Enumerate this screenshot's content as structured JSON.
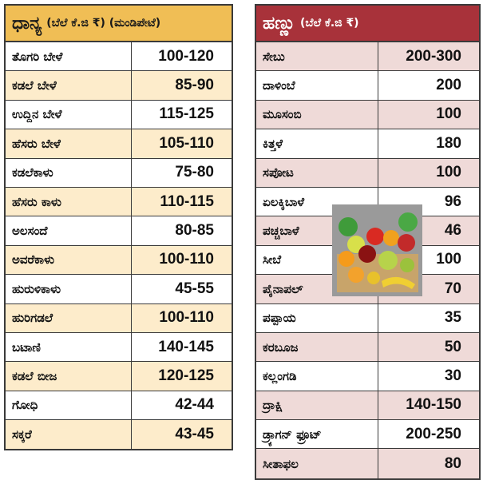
{
  "grains": {
    "title_main": "ಧಾನ್ಯ",
    "title_sub": "(ಬೆಲೆ ಕೆ.ಜಿ ₹) (ಮಂಡಿಪೇಟೆ)",
    "items": [
      {
        "name": "ತೊಗರಿ ಬೇಳೆ",
        "price": "100-120"
      },
      {
        "name": "ಕಡಲೆ ಬೇಳೆ",
        "price": "85-90"
      },
      {
        "name": "ಉದ್ದಿನ ಬೇಳೆ",
        "price": "115-125"
      },
      {
        "name": "ಹೆಸರು ಬೇಳೆ",
        "price": "105-110"
      },
      {
        "name": "ಕಡಲೆಕಾಳು",
        "price": "75-80"
      },
      {
        "name": "ಹೆಸರು ಕಾಳು",
        "price": "110-115"
      },
      {
        "name": "ಅಲಸಂದೆ",
        "price": "80-85"
      },
      {
        "name": "ಅವರೆಕಾಳು",
        "price": "100-110"
      },
      {
        "name": "ಹುರುಳಿಕಾಳು",
        "price": "45-55"
      },
      {
        "name": "ಹುರಿಗಡಲೆ",
        "price": "100-110"
      },
      {
        "name": "ಬಟಾಣಿ",
        "price": "140-145"
      },
      {
        "name": "ಕಡಲೆ ಬೀಜ",
        "price": "120-125"
      },
      {
        "name": "ಗೋಧಿ",
        "price": "42-44"
      },
      {
        "name": "ಸಕ್ಕರೆ",
        "price": "43-45"
      }
    ]
  },
  "fruits": {
    "title_main": "ಹಣ್ಣು",
    "title_sub": "(ಬೆಲೆ ಕೆ.ಜಿ ₹)",
    "items": [
      {
        "name": "ಸೇಬು",
        "price": "200-300"
      },
      {
        "name": "ದಾಳಿಂಬೆ",
        "price": "200"
      },
      {
        "name": "ಮೂಸಂಬಿ",
        "price": "100"
      },
      {
        "name": "ಕಿತ್ತಳೆ",
        "price": "180"
      },
      {
        "name": "ಸಪೋಟ",
        "price": "100"
      },
      {
        "name": "ಏಲಕ್ಕಿಬಾಳೆ",
        "price": "96"
      },
      {
        "name": "ಪಚ್ಚಬಾಳೆ",
        "price": "46"
      },
      {
        "name": "ಸೀಬೆ",
        "price": "100"
      },
      {
        "name": "ಪೈನಾಪಲ್",
        "price": "70"
      },
      {
        "name": "ಪಪ್ಪಾಯ",
        "price": "35"
      },
      {
        "name": "ಕರಬೂಜ",
        "price": "50"
      },
      {
        "name": "ಕಲ್ಲಂಗಡಿ",
        "price": "30"
      },
      {
        "name": "ದ್ರಾಕ್ಷಿ",
        "price": "140-150"
      },
      {
        "name": "ಡ್ರ್ಯಾಗನ್ ಫ್ರೂಟ್",
        "price": "200-250"
      },
      {
        "name": "ಸೀತಾಫಲ",
        "price": "80"
      }
    ]
  },
  "image": {
    "icon": "fruit-basket-photo"
  }
}
